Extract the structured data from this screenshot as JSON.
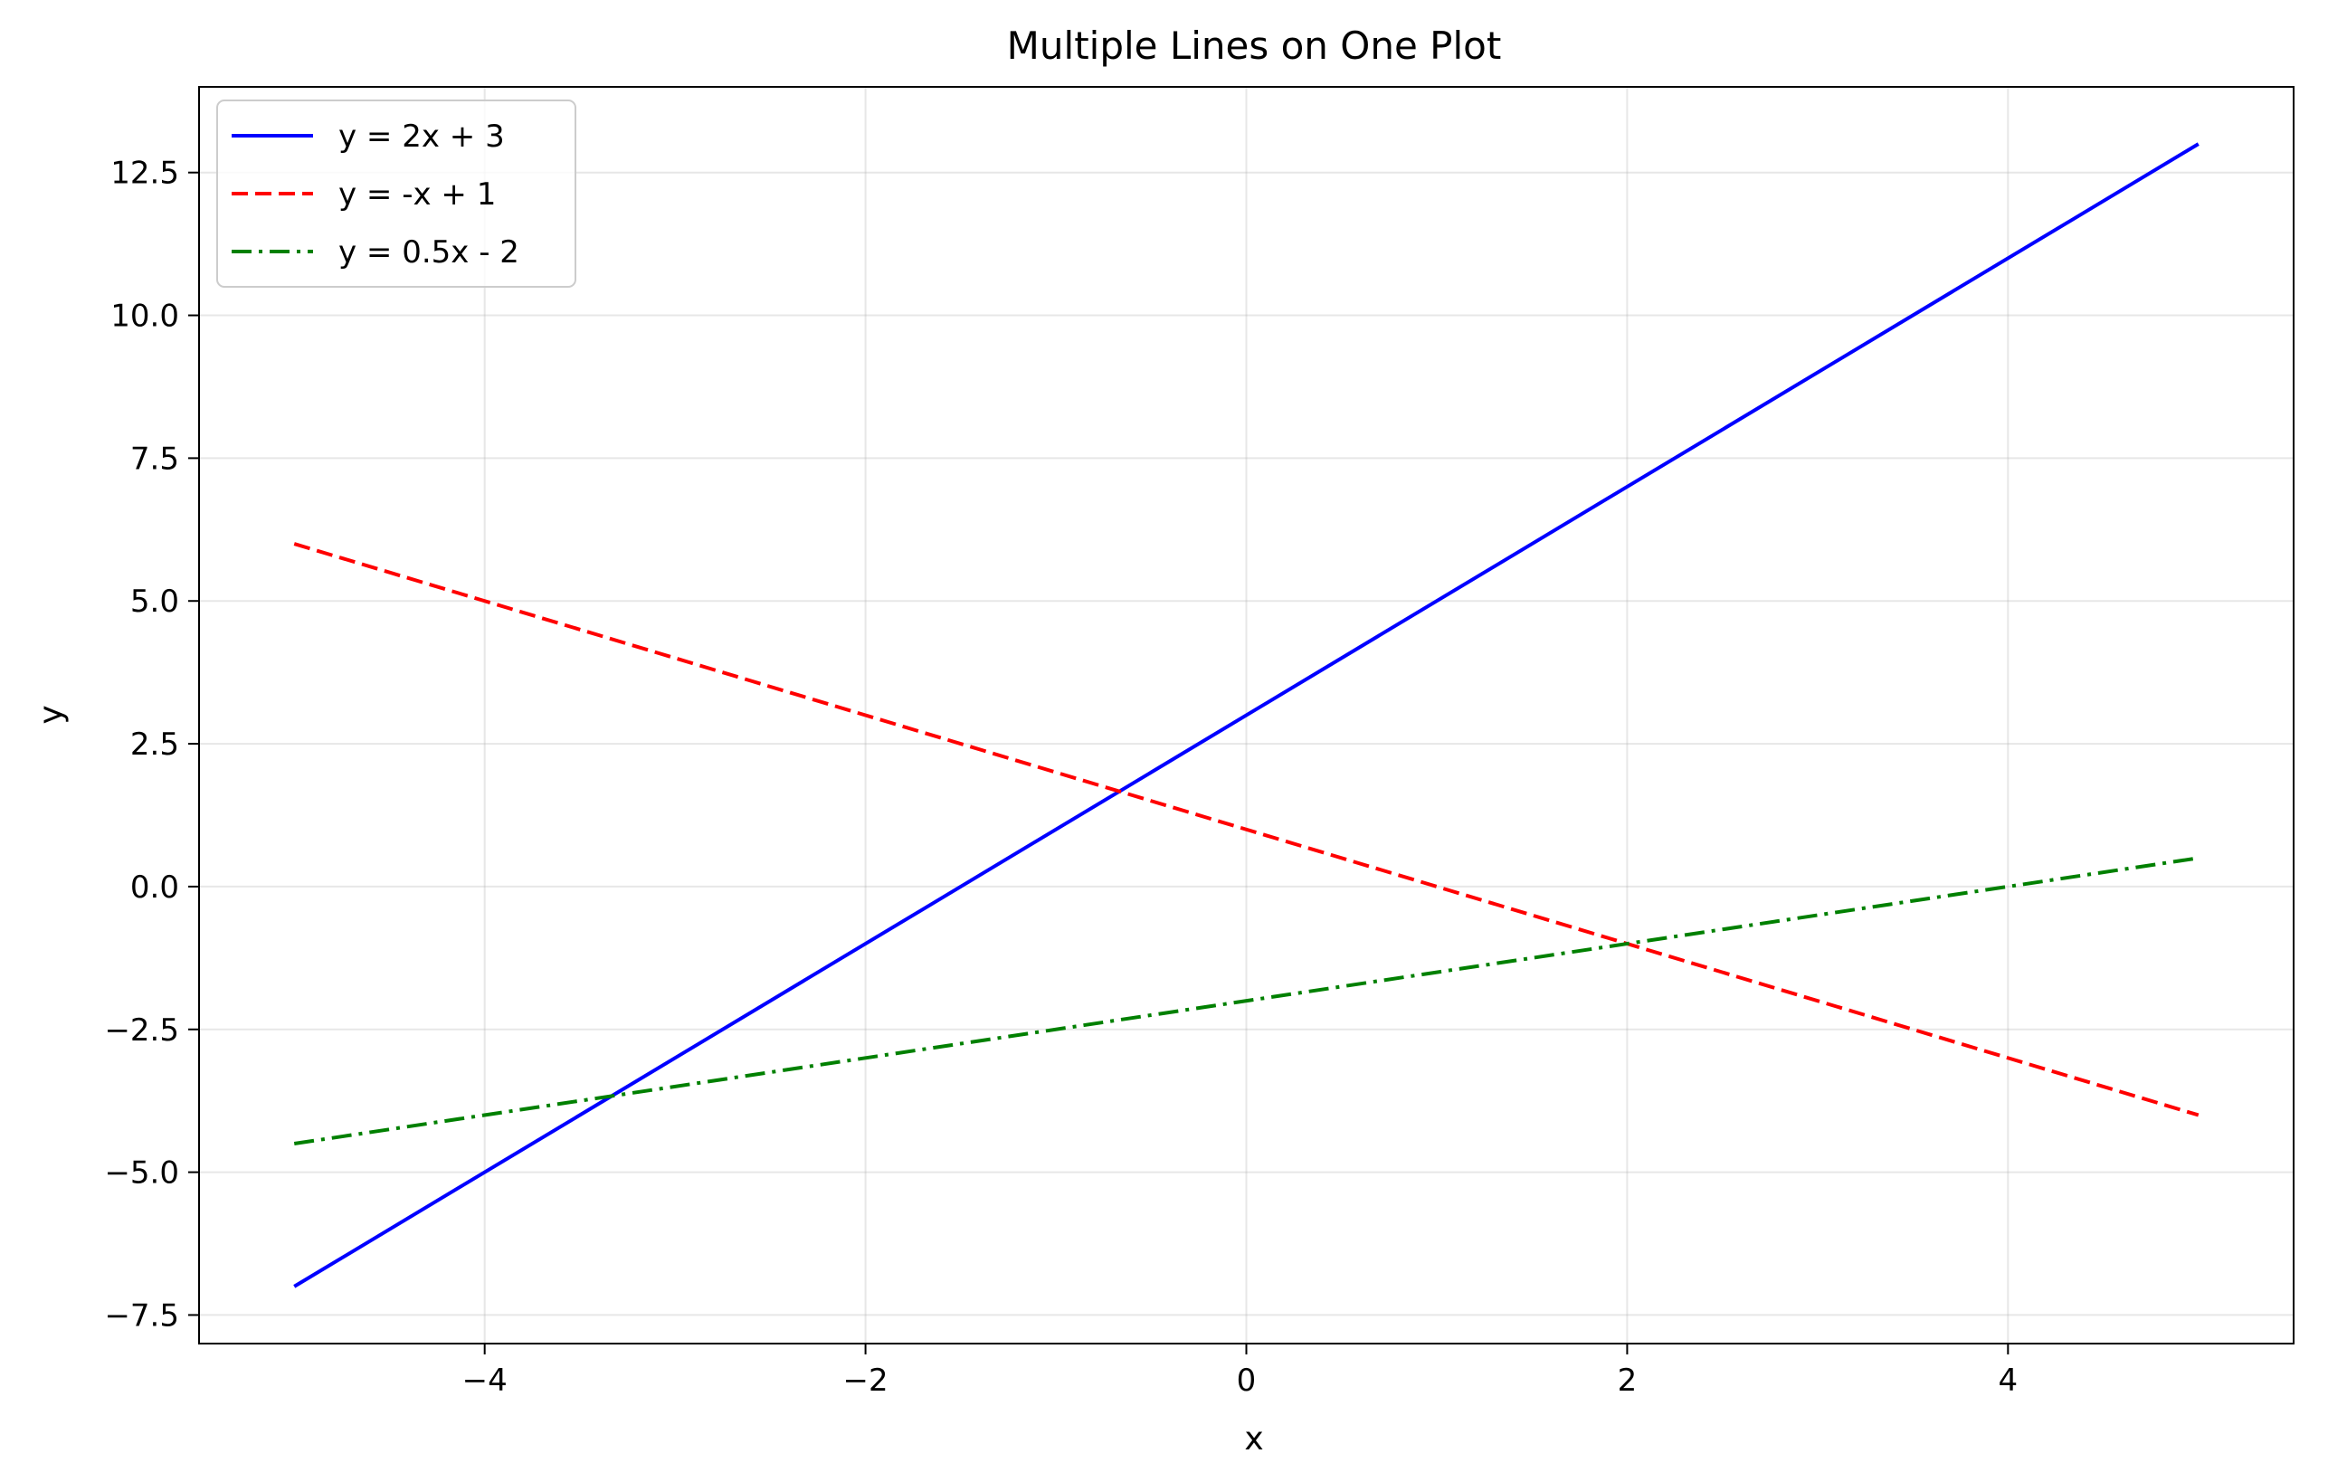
{
  "chart_data": {
    "type": "line",
    "title": "Multiple Lines on One Plot",
    "xlabel": "x",
    "ylabel": "y",
    "xlim": [
      -5.5,
      5.5
    ],
    "ylim": [
      -8.0,
      14.0
    ],
    "x_ticks": [
      -4,
      -2,
      0,
      2,
      4
    ],
    "x_tick_labels": [
      "−4",
      "−2",
      "0",
      "2",
      "4"
    ],
    "y_ticks": [
      -7.5,
      -5.0,
      -2.5,
      0.0,
      2.5,
      5.0,
      7.5,
      10.0,
      12.5
    ],
    "y_tick_labels": [
      "−7.5",
      "−5.0",
      "−2.5",
      "0.0",
      "2.5",
      "5.0",
      "7.5",
      "10.0",
      "12.5"
    ],
    "grid": true,
    "legend_position": "top-left",
    "series": [
      {
        "name": "y = 2x + 3",
        "color": "#0000ff",
        "linestyle": "solid",
        "x": [
          -5,
          5
        ],
        "y": [
          -7,
          13
        ]
      },
      {
        "name": "y = -x + 1",
        "color": "#ff0000",
        "linestyle": "dashed",
        "x": [
          -5,
          5
        ],
        "y": [
          6,
          -4
        ]
      },
      {
        "name": "y = 0.5x - 2",
        "color": "#008000",
        "linestyle": "dashdot",
        "x": [
          -5,
          5
        ],
        "y": [
          -4.5,
          0.5
        ]
      }
    ]
  }
}
